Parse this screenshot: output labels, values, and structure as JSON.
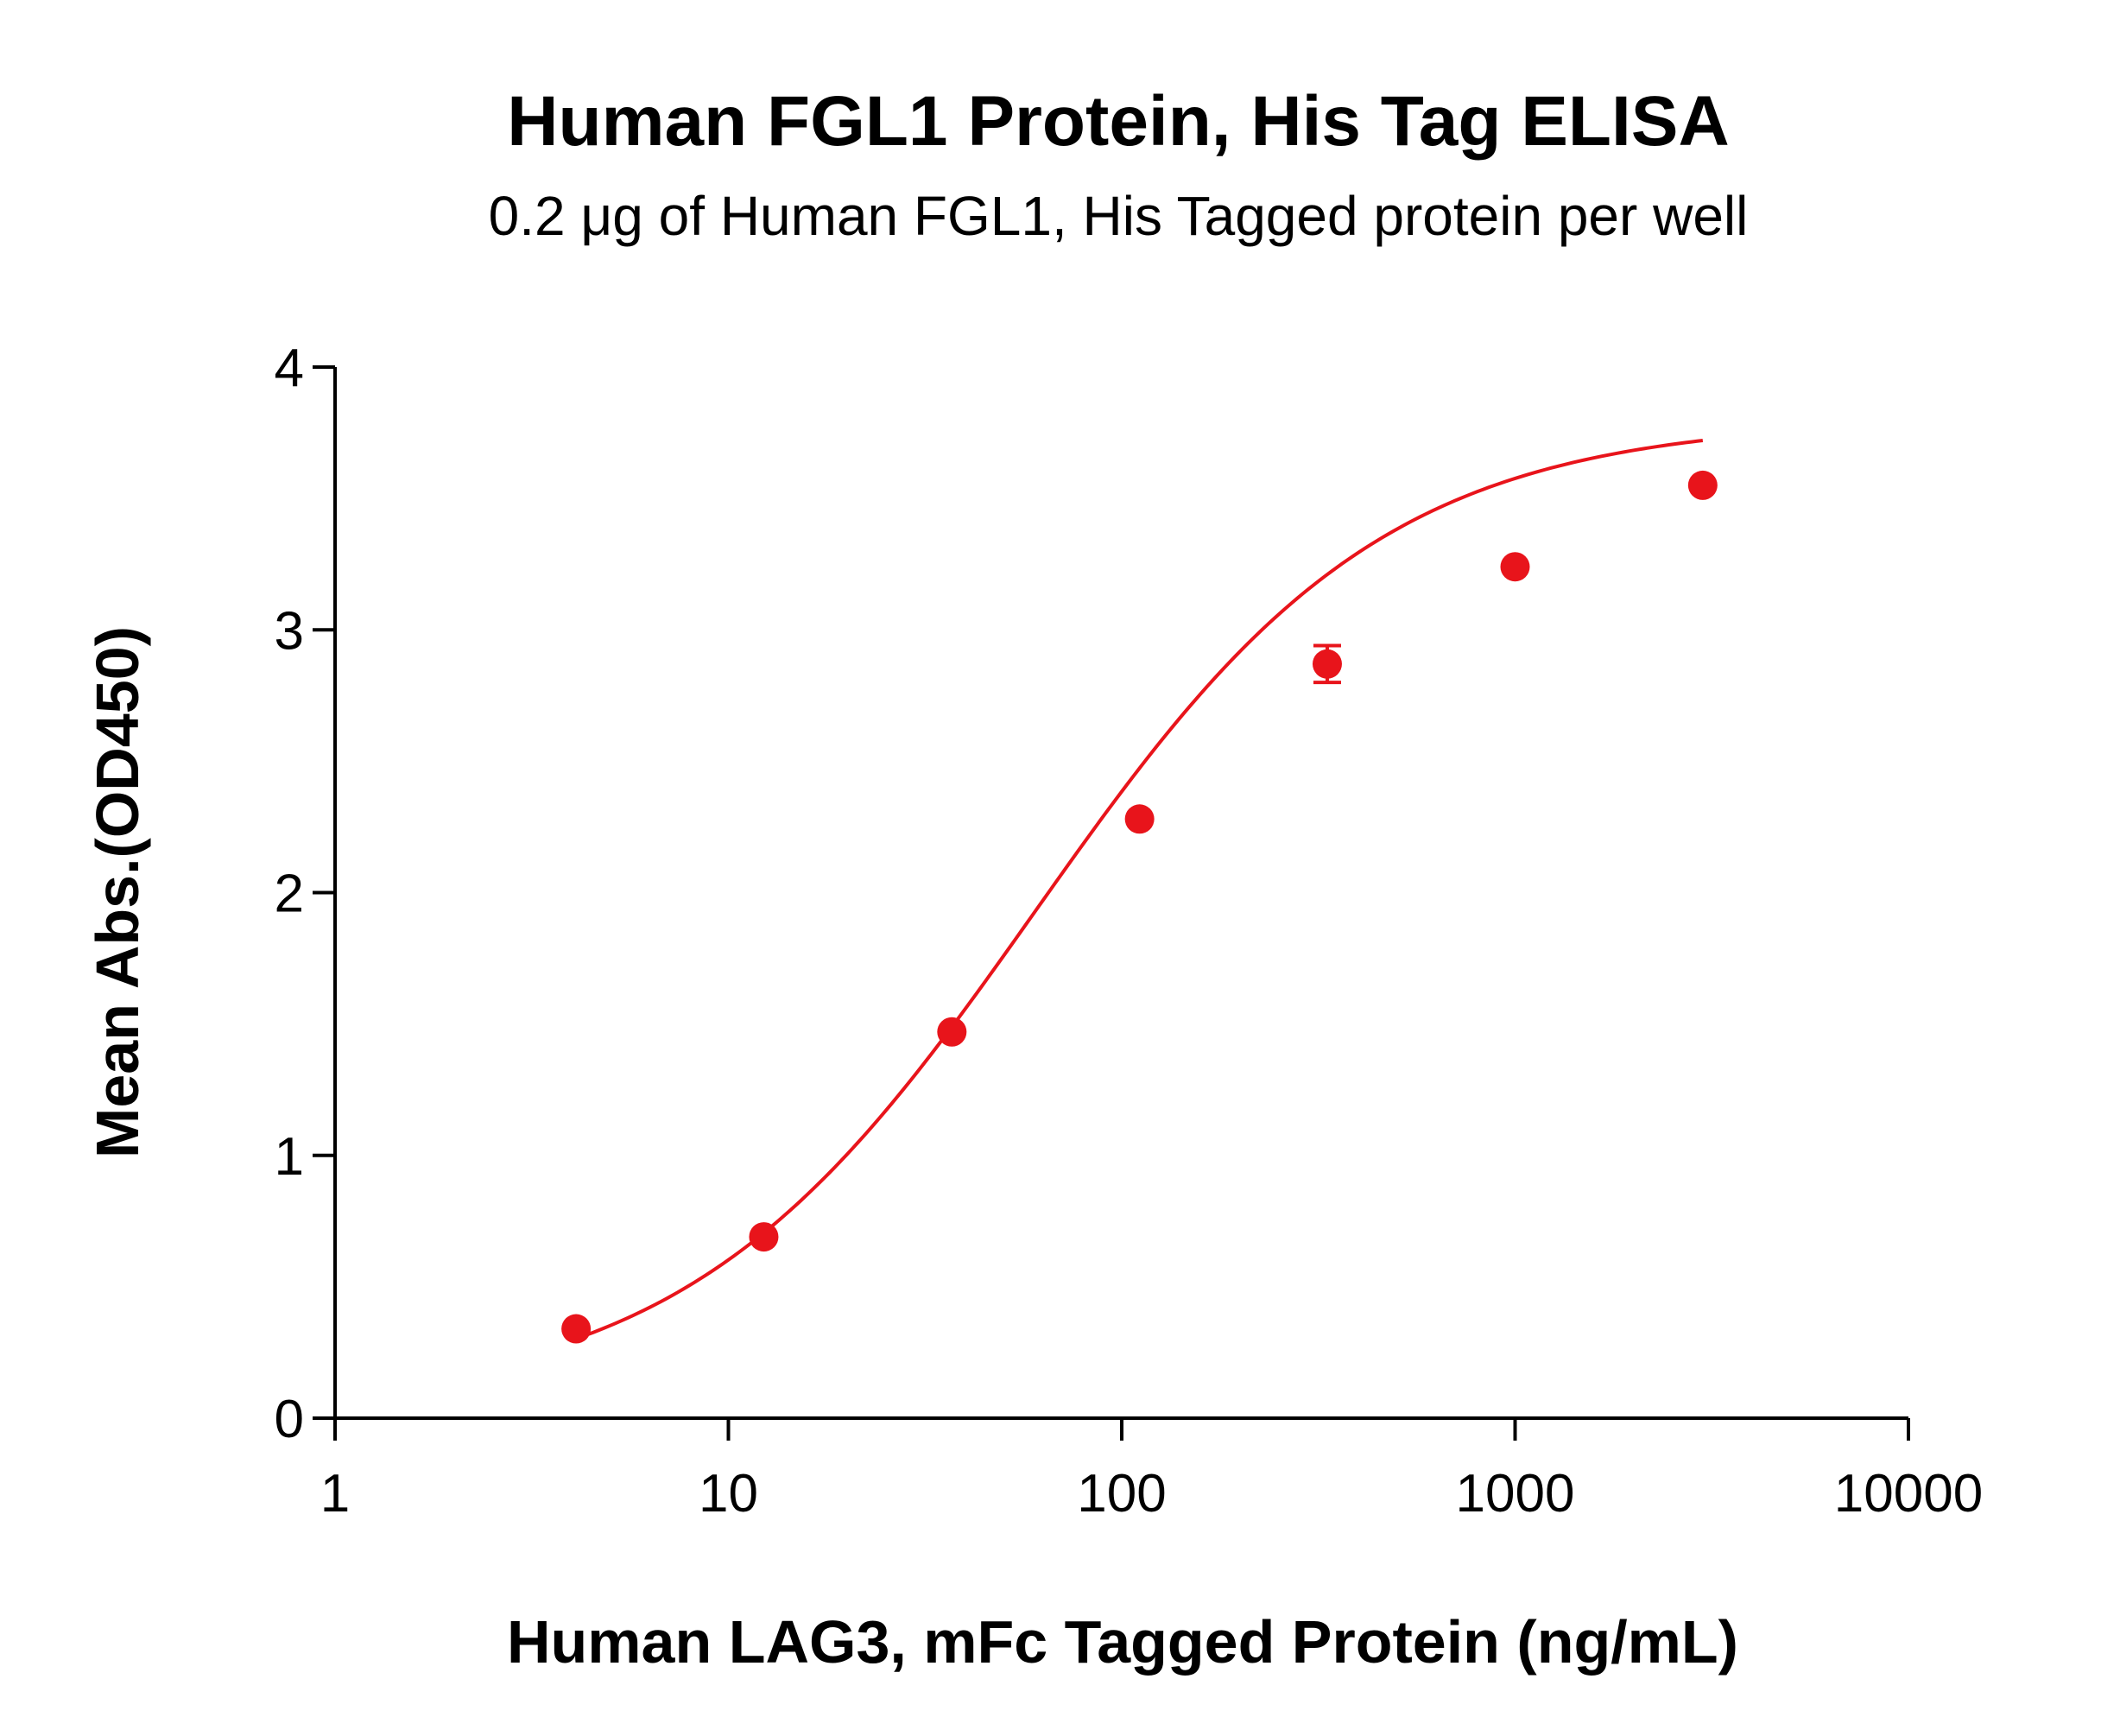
{
  "chart_data": {
    "type": "scatter",
    "title": "Human FGL1 Protein, His Tag ELISA",
    "subtitle": "0.2 μg of Human FGL1, His Tagged protein per well",
    "xlabel": "Human LAG3, mFc Tagged Protein (ng/mL)",
    "ylabel": "Mean Abs.(OD450)",
    "x_scale": "log",
    "xlim": [
      1,
      10000
    ],
    "ylim": [
      0,
      4
    ],
    "x_ticks": [
      1,
      10,
      100,
      1000,
      10000
    ],
    "x_tick_labels": [
      "1",
      "10",
      "100",
      "1000",
      "10000"
    ],
    "y_ticks": [
      0,
      1,
      2,
      3,
      4
    ],
    "y_tick_labels": [
      "0",
      "1",
      "2",
      "3",
      "4"
    ],
    "grid": false,
    "legend": "none",
    "series": [
      {
        "color": "#e8141b",
        "x": [
          4.1,
          12.3,
          37,
          111,
          333,
          1000,
          3000
        ],
        "y": [
          0.34,
          0.69,
          1.47,
          2.28,
          2.87,
          3.24,
          3.55
        ],
        "error": [
          0,
          0,
          0,
          0,
          0.07,
          0,
          0
        ],
        "fit": "4PL",
        "fit_params": {
          "bottom": 0.05,
          "top": 3.8,
          "ec50": 60,
          "hill": 0.98
        }
      }
    ]
  }
}
